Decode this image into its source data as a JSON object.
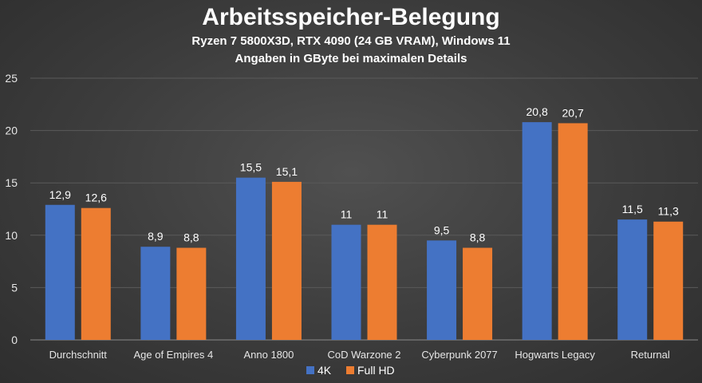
{
  "chart_data": {
    "type": "bar",
    "title": "Arbeitsspeicher-Belegung",
    "subtitle_lines": [
      "Ryzen 7 5800X3D, RTX 4090 (24 GB VRAM), Windows 11",
      "Angaben in GByte bei maximalen Details"
    ],
    "categories": [
      "Durchschnitt",
      "Age of Empires 4",
      "Anno 1800",
      "CoD Warzone 2",
      "Cyberpunk 2077",
      "Hogwarts Legacy",
      "Returnal"
    ],
    "series": [
      {
        "name": "4K",
        "values": [
          12.9,
          8.9,
          15.5,
          11,
          9.5,
          20.8,
          11.5
        ],
        "labels": [
          "12,9",
          "8,9",
          "15,5",
          "11",
          "9,5",
          "20,8",
          "11,5"
        ],
        "color": "#4472c4"
      },
      {
        "name": "Full HD",
        "values": [
          12.6,
          8.8,
          15.1,
          11,
          8.8,
          20.7,
          11.3
        ],
        "labels": [
          "12,6",
          "8,8",
          "15,1",
          "11",
          "8,8",
          "20,7",
          "11,3"
        ],
        "color": "#ed7d31"
      }
    ],
    "ylim": [
      0,
      25
    ],
    "yticks": [
      "0",
      "5",
      "10",
      "15",
      "20",
      "25"
    ],
    "grid": true,
    "legend_position": "bottom"
  }
}
